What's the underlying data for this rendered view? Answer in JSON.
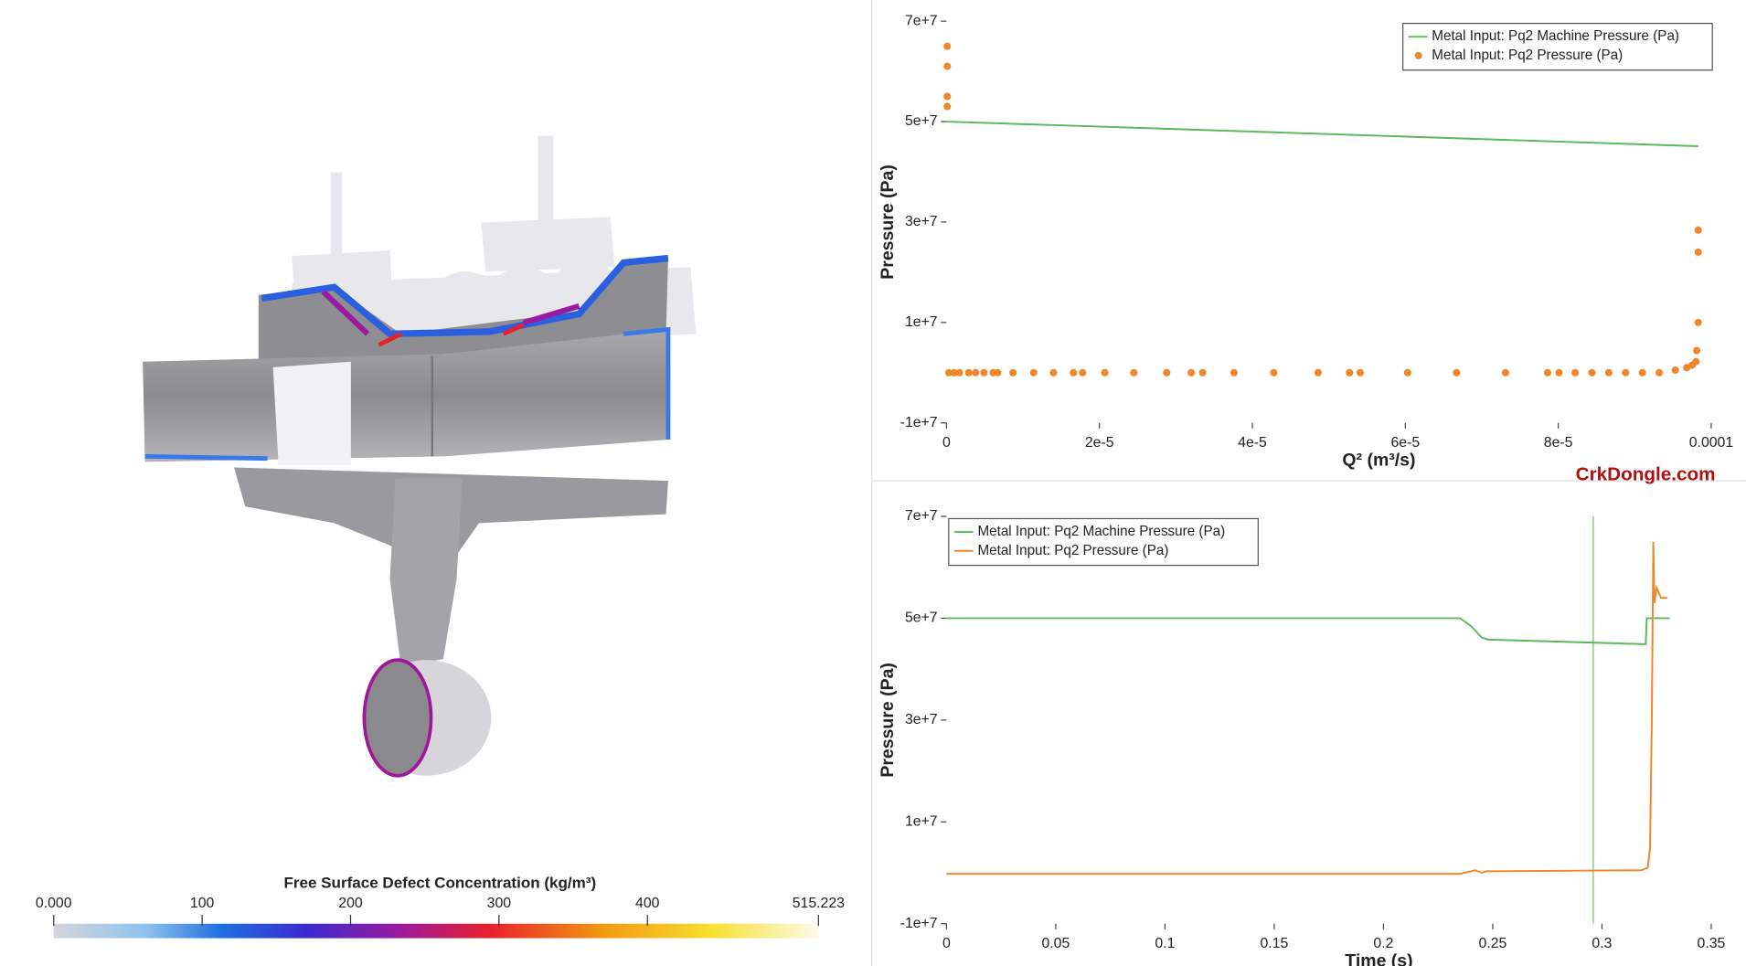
{
  "viewport": {
    "colorbar": {
      "title": "Free Surface Defect Concentration (kg/m³)",
      "range": [
        0,
        515.223
      ],
      "ticks": [
        {
          "value": 0,
          "label": "0.000"
        },
        100,
        200,
        300,
        400,
        515.223
      ]
    }
  },
  "watermark": "CrkDongle.com",
  "chart_data": [
    {
      "type": "line",
      "x_label": "Q² (m³/s)",
      "y_label": "Pressure (Pa)",
      "legend": "upper right",
      "xlim": [
        0,
        0.0001
      ],
      "xticks": [
        0,
        {
          "value": 2e-05,
          "label": "2e-5"
        },
        {
          "value": 4e-05,
          "label": "4e-5"
        },
        {
          "value": 6e-05,
          "label": "6e-5"
        },
        {
          "value": 8e-05,
          "label": "8e-5"
        },
        0.0001
      ],
      "ylim": [
        -10000000,
        70000000
      ],
      "yticks": [
        {
          "value": -10000000,
          "label": "-1e+7"
        },
        {
          "value": 10000000,
          "label": "1e+7"
        },
        {
          "value": 30000000,
          "label": "3e+7"
        },
        {
          "value": 50000000,
          "label": "5e+7"
        },
        {
          "value": 70000000,
          "label": "7e+7"
        }
      ],
      "series": [
        {
          "name": "Metal Input: Pq2 Machine Pressure  (Pa)",
          "color": "#5cb85c",
          "mode": "line",
          "x": [
            0,
            9.83e-05
          ],
          "values": [
            50000000,
            45100000
          ]
        },
        {
          "name": "Metal Input: Pq2 Pressure  (Pa)",
          "color": "#f0862a",
          "mode": "markers",
          "x": [
            1e-07,
            1e-07,
            1e-07,
            1e-07,
            3e-07,
            1e-06,
            1.7e-06,
            2.9e-06,
            3.8e-06,
            4.9e-06,
            6.1e-06,
            6.7e-06,
            8.7e-06,
            1.14e-05,
            1.4e-05,
            1.66e-05,
            1.78e-05,
            2.07e-05,
            2.45e-05,
            2.88e-05,
            3.2e-05,
            3.35e-05,
            3.76e-05,
            4.28e-05,
            4.86e-05,
            5.27e-05,
            5.41e-05,
            6.03e-05,
            6.67e-05,
            7.31e-05,
            7.86e-05,
            8.01e-05,
            8.22e-05,
            8.44e-05,
            8.66e-05,
            8.88e-05,
            9.1e-05,
            9.32e-05,
            9.53e-05,
            9.68e-05,
            9.75e-05,
            9.8e-05,
            9.81e-05,
            9.83e-05,
            9.83e-05,
            9.83e-05
          ],
          "values": [
            65000000,
            61000000,
            55000000,
            53000000,
            0,
            0,
            0,
            0,
            0,
            0,
            0,
            0,
            0,
            0,
            0,
            0,
            0,
            0,
            0,
            0,
            0,
            0,
            0,
            0,
            0,
            0,
            0,
            0,
            0,
            0,
            0,
            0,
            0,
            0,
            0,
            0,
            0,
            0,
            500000,
            1000000,
            1500000,
            2200000,
            4400000,
            10000000,
            24000000,
            28400000
          ]
        }
      ]
    },
    {
      "type": "line",
      "x_label": "Time (s)",
      "y_label": "Pressure (Pa)",
      "legend": "upper left",
      "cursor_x": 0.296,
      "cursor_color": "#9fd49a",
      "xlim": [
        0,
        0.35
      ],
      "xticks": [
        0,
        0.05,
        0.1,
        0.15,
        0.2,
        0.25,
        0.3,
        0.35
      ],
      "ylim": [
        -10000000,
        70000000
      ],
      "yticks": [
        {
          "value": -10000000,
          "label": "-1e+7"
        },
        {
          "value": 10000000,
          "label": "1e+7"
        },
        {
          "value": 30000000,
          "label": "3e+7"
        },
        {
          "value": 50000000,
          "label": "5e+7"
        },
        {
          "value": 70000000,
          "label": "7e+7"
        }
      ],
      "series": [
        {
          "name": "Metal Input: Pq2 Machine Pressure  (Pa)",
          "color": "#5cb85c",
          "mode": "line",
          "x": [
            0,
            0.235,
            0.24,
            0.245,
            0.248,
            0.32,
            0.3205,
            0.331
          ],
          "values": [
            50000000,
            50000000,
            48500000,
            46200000,
            45800000,
            44900000,
            50000000,
            50000000
          ]
        },
        {
          "name": "Metal Input: Pq2 Pressure  (Pa)",
          "color": "#f0862a",
          "mode": "line",
          "x": [
            0,
            0.235,
            0.242,
            0.245,
            0.247,
            0.318,
            0.321,
            0.322,
            0.3228,
            0.3235,
            0.324,
            0.325,
            0.327,
            0.33
          ],
          "values": [
            -200000,
            -200000,
            500000,
            0,
            300000,
            500000,
            1000000,
            5000000,
            30000000,
            65000000,
            53000000,
            56000000,
            54000000,
            54000000
          ]
        }
      ]
    }
  ]
}
